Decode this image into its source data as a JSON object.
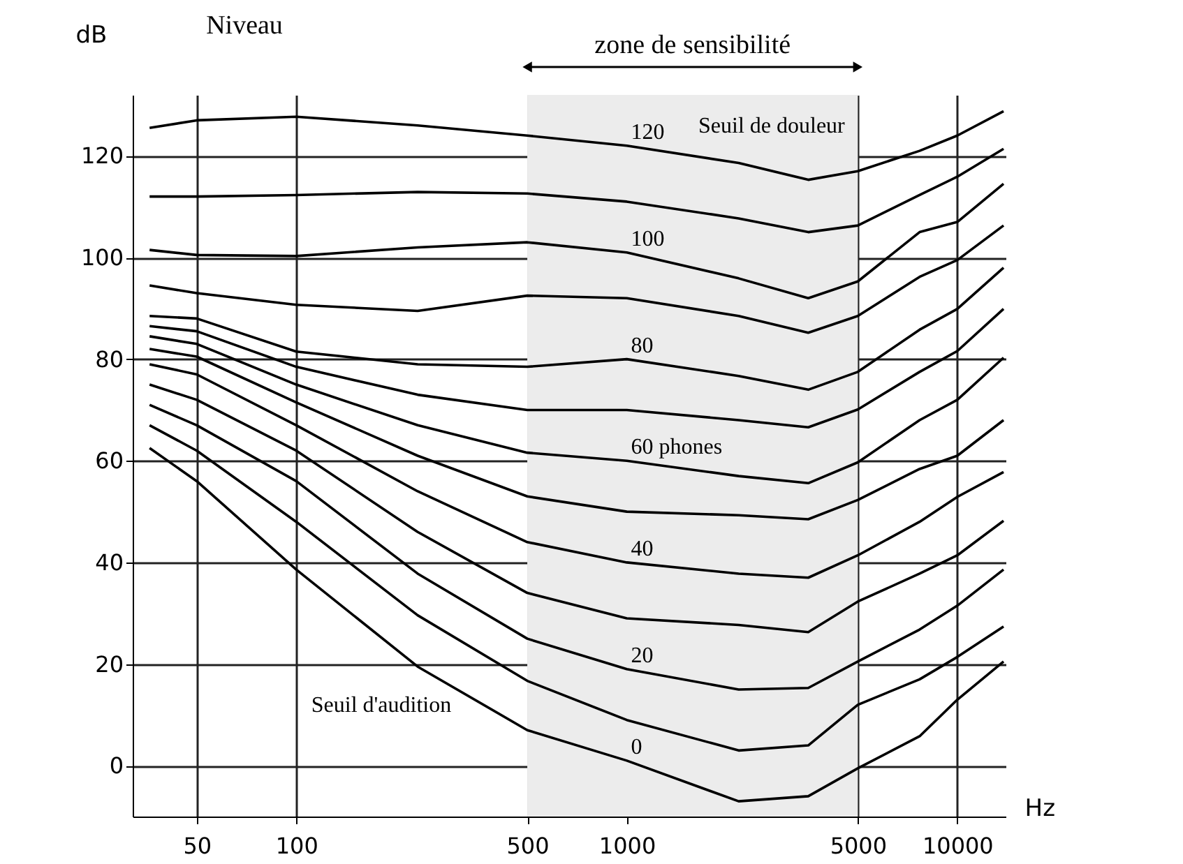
{
  "chart_data": {
    "type": "line",
    "xlabel": "Hz",
    "ylabel": "dB",
    "log": "x",
    "x": [
      36,
      50,
      100,
      233,
      500,
      1000,
      2180,
      3540,
      5000,
      7690,
      10000,
      13800
    ],
    "xlim": [
      32,
      14000
    ],
    "xticks": [
      50,
      100,
      500,
      1000,
      5000,
      10000
    ],
    "ylim": [
      -10,
      132
    ],
    "yticks": [
      0,
      20,
      40,
      60,
      80,
      100,
      120
    ],
    "grid": true,
    "legend": false,
    "marker": "none",
    "line_style": "solid",
    "series": [
      {
        "name": "120",
        "color": "#000000",
        "values": [
          125.5,
          127,
          127.7,
          126,
          124,
          122,
          118.6,
          115.3,
          117,
          121,
          124,
          128.8
        ]
      },
      {
        "color": "#000000",
        "values": [
          112,
          112,
          112.3,
          112.9,
          112.6,
          111,
          107.7,
          105,
          106.3,
          112.3,
          115.9,
          121.4
        ]
      },
      {
        "name": "100",
        "color": "#000000",
        "values": [
          101.5,
          100.5,
          100.3,
          102,
          103,
          101,
          95.9,
          92,
          95.3,
          105,
          107,
          114.5
        ]
      },
      {
        "color": "#000000",
        "values": [
          94.5,
          93,
          90.7,
          89.5,
          92.5,
          92,
          88.5,
          85.2,
          88.5,
          96.2,
          99.5,
          106.3
        ]
      },
      {
        "name": "80",
        "color": "#000000",
        "values": [
          88.5,
          88,
          81.5,
          79,
          78.5,
          80,
          76.7,
          74,
          77.5,
          85.8,
          89.9,
          98
        ]
      },
      {
        "color": "#000000",
        "values": [
          86.5,
          85.5,
          78.5,
          73,
          70,
          70,
          68,
          66.6,
          70.1,
          77.5,
          81.6,
          89.9
        ]
      },
      {
        "name": "60 phones",
        "color": "#000000",
        "values": [
          84.5,
          83,
          75,
          67,
          61.6,
          60,
          57,
          55.6,
          59.7,
          68,
          72,
          80.3
        ]
      },
      {
        "color": "#000000",
        "values": [
          82,
          80.5,
          71.5,
          61,
          53,
          50,
          49.3,
          48.5,
          52.3,
          58.4,
          61,
          68
        ]
      },
      {
        "name": "40",
        "color": "#000000",
        "values": [
          79,
          77,
          67,
          54,
          44,
          40,
          37.8,
          37,
          41.4,
          48,
          52.9,
          57.8
        ]
      },
      {
        "color": "#000000",
        "values": [
          75,
          72,
          62,
          46,
          34,
          29,
          27.7,
          26.3,
          32.3,
          37.8,
          41.4,
          48.2
        ]
      },
      {
        "name": "20",
        "color": "#000000",
        "values": [
          71,
          67,
          56,
          37.8,
          25,
          19,
          15,
          15.3,
          20.5,
          26.8,
          31.5,
          38.6
        ]
      },
      {
        "color": "#000000",
        "values": [
          67,
          62,
          48,
          29.6,
          16.7,
          9,
          3,
          4,
          12,
          17,
          21.4,
          27.4
        ]
      },
      {
        "name": "0",
        "color": "#000000",
        "values": [
          62.5,
          56,
          38.6,
          19.5,
          7,
          1,
          -7,
          -6,
          -0.5,
          5.8,
          13,
          20.5
        ]
      }
    ],
    "bands": [
      {
        "axis": "x",
        "from": 500,
        "to": 5000,
        "label": "zone de sensibilité"
      }
    ],
    "annotations": [
      "Niveau",
      "Seuil de douleur",
      "Seuil d'audition"
    ]
  }
}
